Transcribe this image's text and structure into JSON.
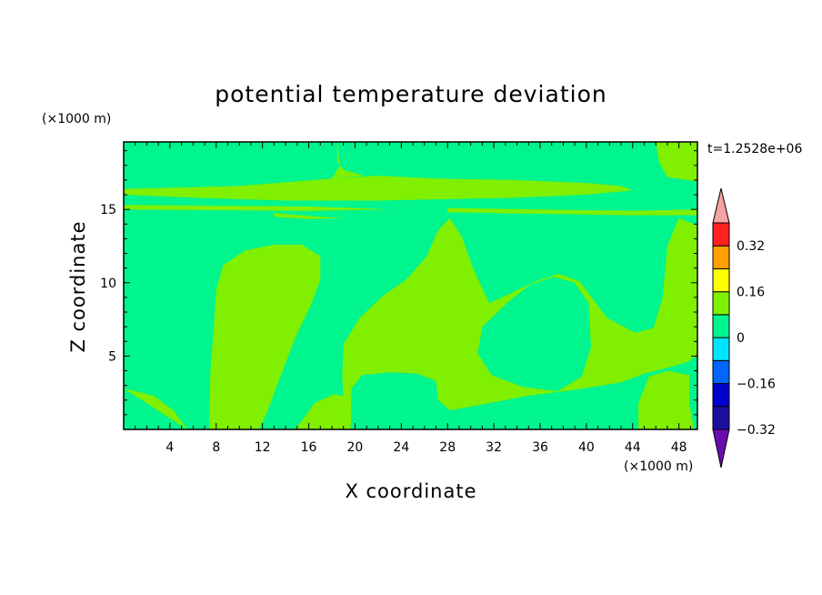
{
  "chart_data": {
    "type": "heatmap",
    "title": "potential temperature deviation",
    "xlabel": "X coordinate",
    "ylabel": "Z coordinate",
    "x_unit": "(×1000 m)",
    "y_unit": "(×1000 m)",
    "time_label": "t=1.2528e+06",
    "xlim": [
      0,
      49.6
    ],
    "ylim": [
      0,
      19.6
    ],
    "x_ticks": [
      4,
      8,
      12,
      16,
      20,
      24,
      28,
      32,
      36,
      40,
      44,
      48
    ],
    "y_ticks": [
      5,
      10,
      15
    ],
    "colorbar": {
      "levels": [
        -0.4,
        -0.32,
        -0.24,
        -0.16,
        -0.08,
        0,
        0.08,
        0.16,
        0.24,
        0.32,
        0.4
      ],
      "labeled": [
        "0.32",
        "0.16",
        "0",
        "−0.16",
        "−0.32"
      ],
      "labeled_values": [
        0.32,
        0.16,
        0,
        -0.16,
        -0.32
      ],
      "colors": [
        "#6a0dad",
        "#1c0fa0",
        "#0000cc",
        "#0066ff",
        "#00e5ff",
        "#00f58f",
        "#80ef00",
        "#ffff00",
        "#ffa000",
        "#ff2020",
        "#f4a3a3"
      ]
    },
    "background_value_band": [
      -0.08,
      0
    ],
    "regions": [
      {
        "band": [
          0,
          0.08
        ],
        "polygon": [
          [
            0,
            16.4
          ],
          [
            10,
            16.6
          ],
          [
            18,
            17.1
          ],
          [
            22,
            17.3
          ],
          [
            27,
            17.1
          ],
          [
            34,
            17.0
          ],
          [
            40,
            16.8
          ],
          [
            43,
            16.6
          ],
          [
            44,
            16.3
          ],
          [
            40,
            16.0
          ],
          [
            34,
            15.8
          ],
          [
            28,
            15.7
          ],
          [
            22,
            15.6
          ],
          [
            14,
            15.6
          ],
          [
            6,
            15.8
          ],
          [
            0,
            16.0
          ]
        ]
      },
      {
        "band": [
          0,
          0.08
        ],
        "polygon": [
          [
            18.4,
            19.6
          ],
          [
            18.5,
            18.2
          ],
          [
            19,
            17.7
          ],
          [
            20.8,
            17.3
          ],
          [
            18,
            17.1
          ],
          [
            18.7,
            18.0
          ],
          [
            18.4,
            19.6
          ]
        ]
      },
      {
        "band": [
          0,
          0.08
        ],
        "polygon": [
          [
            46,
            19.6
          ],
          [
            46.3,
            18.2
          ],
          [
            47,
            17.2
          ],
          [
            49.6,
            16.9
          ],
          [
            49.6,
            19.6
          ]
        ]
      },
      {
        "band": [
          0,
          0.08
        ],
        "polygon": [
          [
            0,
            15.3
          ],
          [
            8,
            15.25
          ],
          [
            16,
            15.2
          ],
          [
            23,
            15.0
          ],
          [
            16,
            14.9
          ],
          [
            8,
            14.95
          ],
          [
            0,
            15.0
          ]
        ]
      },
      {
        "band": [
          0,
          0.08
        ],
        "polygon": [
          [
            28,
            15.1
          ],
          [
            36,
            15.0
          ],
          [
            44,
            14.9
          ],
          [
            49.6,
            15.0
          ],
          [
            49.6,
            14.6
          ],
          [
            44,
            14.6
          ],
          [
            36,
            14.7
          ],
          [
            28,
            14.8
          ]
        ]
      },
      {
        "band": [
          0,
          0.08
        ],
        "polygon": [
          [
            13,
            14.75
          ],
          [
            17,
            14.5
          ],
          [
            19,
            14.4
          ],
          [
            16,
            14.35
          ],
          [
            13,
            14.5
          ]
        ]
      },
      {
        "band": [
          0,
          0.08
        ],
        "polygon": [
          [
            7.4,
            0
          ],
          [
            7.5,
            4
          ],
          [
            7.8,
            7
          ],
          [
            8,
            9.5
          ],
          [
            8.6,
            11.2
          ],
          [
            10.5,
            12.2
          ],
          [
            13,
            12.6
          ],
          [
            15.4,
            12.6
          ],
          [
            17,
            11.8
          ],
          [
            17,
            10.2
          ],
          [
            16.2,
            8.5
          ],
          [
            14.8,
            6.2
          ],
          [
            13.5,
            3.5
          ],
          [
            12.4,
            1.2
          ],
          [
            11.7,
            0
          ]
        ]
      },
      {
        "band": [
          0,
          0.08
        ],
        "polygon": [
          [
            19.6,
            0
          ],
          [
            19.7,
            2.8
          ],
          [
            20.6,
            3.7
          ],
          [
            23,
            3.9
          ],
          [
            25.4,
            3.8
          ],
          [
            27,
            3.3
          ],
          [
            27.2,
            2.0
          ],
          [
            28.2,
            1.3
          ],
          [
            31,
            1.7
          ],
          [
            35,
            2.3
          ],
          [
            39,
            2.7
          ],
          [
            43,
            3.2
          ],
          [
            45,
            3.8
          ],
          [
            47,
            4.2
          ],
          [
            48.8,
            4.6
          ],
          [
            49.6,
            5.1
          ],
          [
            49.6,
            13.9
          ],
          [
            48,
            14.4
          ],
          [
            47,
            12.5
          ],
          [
            46.6,
            9.0
          ],
          [
            45.8,
            6.9
          ],
          [
            44.2,
            6.6
          ],
          [
            41.8,
            7.6
          ],
          [
            39.4,
            10.1
          ],
          [
            37.6,
            10.6
          ],
          [
            35.6,
            10.1
          ],
          [
            33.8,
            9.4
          ],
          [
            31.6,
            8.6
          ],
          [
            30.2,
            11.0
          ],
          [
            29.2,
            13.2
          ],
          [
            28.2,
            14.4
          ],
          [
            27.2,
            13.6
          ],
          [
            26.2,
            11.8
          ],
          [
            24.4,
            10.2
          ],
          [
            22.4,
            9.1
          ],
          [
            20.4,
            7.6
          ],
          [
            19,
            5.8
          ],
          [
            18.9,
            3.6
          ],
          [
            19,
            2.2
          ],
          [
            19.3,
            0
          ]
        ]
      },
      {
        "band": [
          0,
          0.08
        ],
        "polygon": [
          [
            14.8,
            0
          ],
          [
            15.5,
            0.7
          ],
          [
            16.5,
            1.8
          ],
          [
            18.2,
            2.4
          ],
          [
            19.5,
            2.2
          ],
          [
            19.7,
            1.0
          ],
          [
            19.6,
            0
          ]
        ]
      },
      {
        "band": [
          0,
          0.08
        ],
        "polygon": [
          [
            44.5,
            0
          ],
          [
            44.5,
            1.8
          ],
          [
            45.4,
            3.6
          ],
          [
            47,
            4.0
          ],
          [
            48.9,
            3.7
          ],
          [
            48.9,
            1.8
          ],
          [
            49.3,
            0
          ]
        ]
      },
      {
        "band": [
          0,
          0.08
        ],
        "polygon": [
          [
            0,
            2.8
          ],
          [
            2.6,
            2.3
          ],
          [
            4.3,
            1.3
          ],
          [
            5.5,
            0
          ]
        ]
      },
      {
        "band": [
          -0.08,
          0
        ],
        "polygon": [
          [
            30.6,
            5.2
          ],
          [
            31.8,
            3.7
          ],
          [
            34.5,
            2.9
          ],
          [
            37.5,
            2.6
          ],
          [
            39.6,
            3.6
          ],
          [
            40.4,
            5.6
          ],
          [
            40.2,
            8.6
          ],
          [
            39.0,
            10.0
          ],
          [
            37.2,
            10.4
          ],
          [
            35.2,
            9.9
          ],
          [
            33.4,
            8.8
          ],
          [
            31.0,
            7.0
          ]
        ]
      }
    ]
  }
}
